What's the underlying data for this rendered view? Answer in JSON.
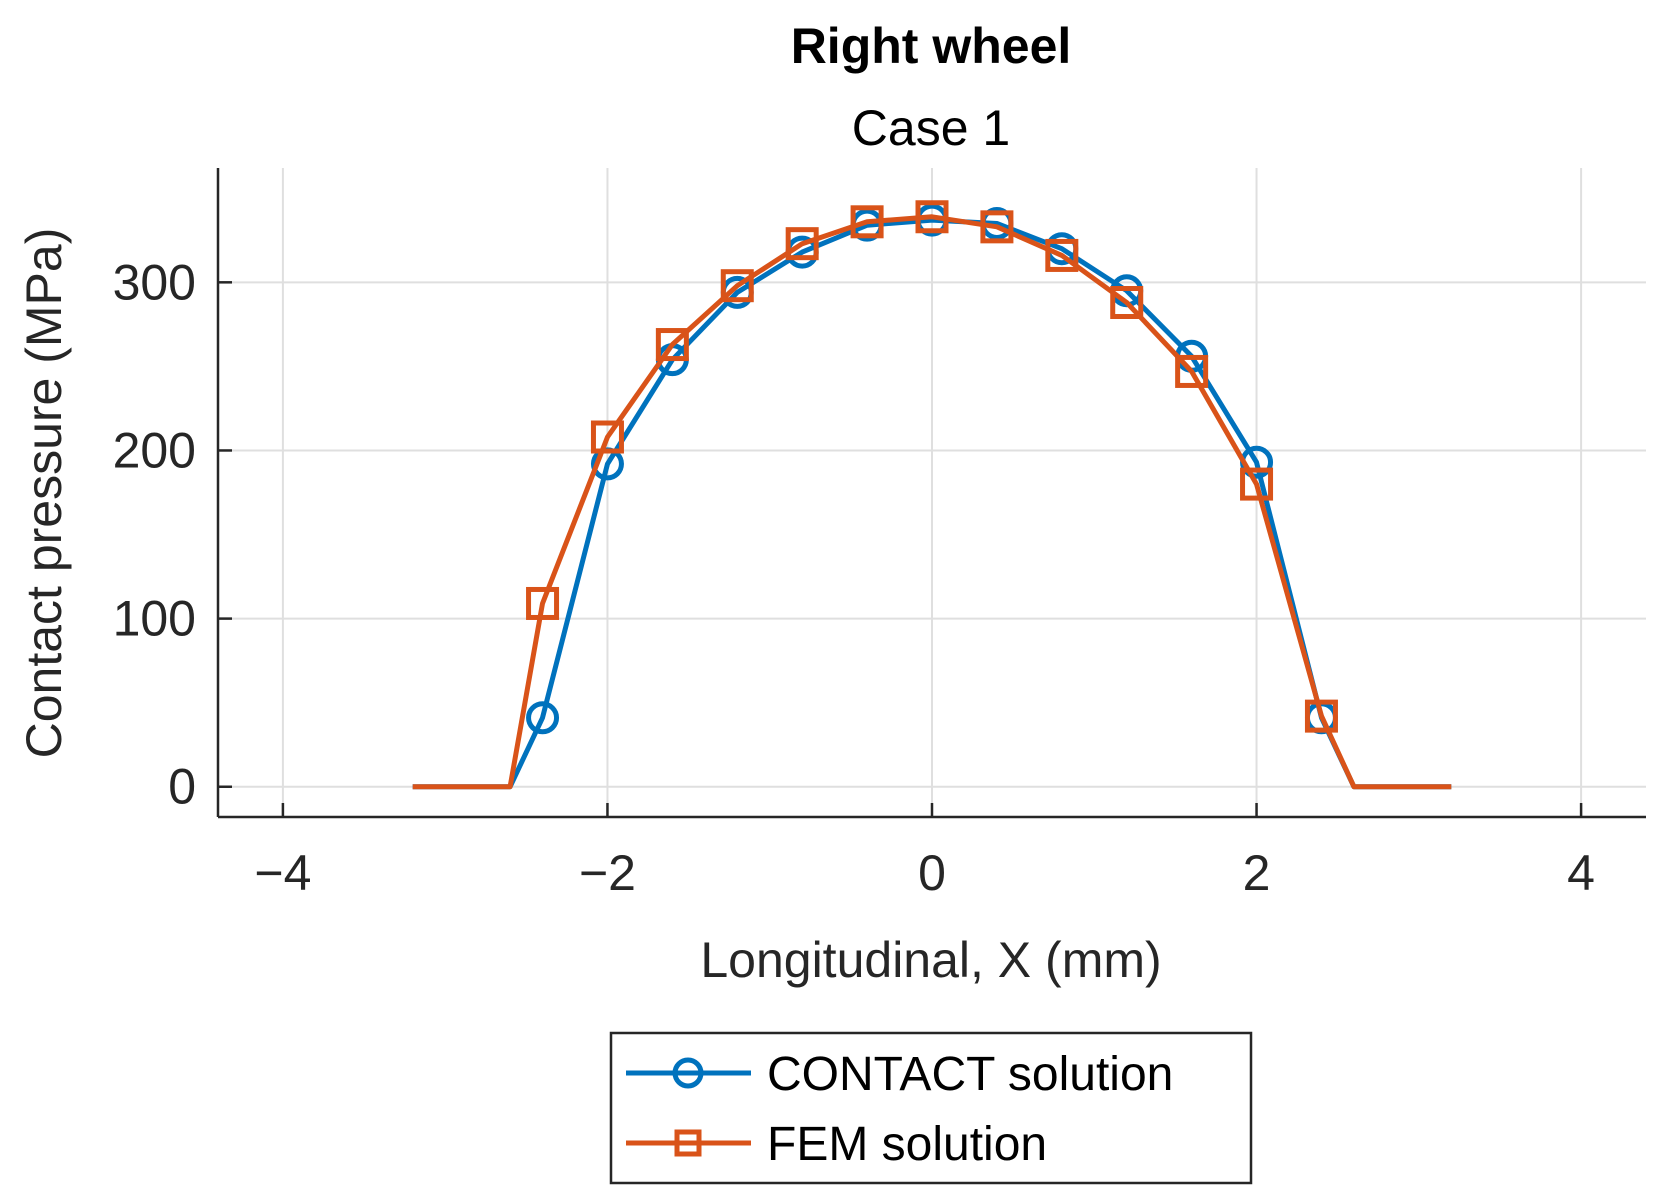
{
  "chart_data": {
    "type": "line",
    "title": "Right wheel",
    "subtitle": "Case 1",
    "xlabel": "Longitudinal, X (mm)",
    "ylabel": "Contact pressure (MPa)",
    "xlim": [
      -4.4,
      4.4
    ],
    "ylim": [
      -18,
      368
    ],
    "xticks": [
      -4,
      -2,
      0,
      2,
      4
    ],
    "xtick_labels": [
      "−4",
      "−2",
      "0",
      "2",
      "4"
    ],
    "yticks": [
      0,
      100,
      200,
      300
    ],
    "ytick_labels": [
      "0",
      "100",
      "200",
      "300"
    ],
    "grid": true,
    "legend_position": "bottom-outside",
    "series": [
      {
        "name": "CONTACT solution",
        "color": "#0072BD",
        "marker": "circle",
        "x": [
          -3.2,
          -2.6,
          -2.4,
          -2.0,
          -1.6,
          -1.2,
          -0.8,
          -0.4,
          0.0,
          0.4,
          0.8,
          1.2,
          1.6,
          2.0,
          2.4,
          2.6,
          3.2
        ],
        "y": [
          0,
          0,
          41,
          192,
          254,
          294,
          318,
          334,
          337,
          335,
          320,
          295,
          256,
          193,
          41,
          0,
          0
        ],
        "marker_indices": [
          2,
          3,
          4,
          5,
          6,
          7,
          8,
          9,
          10,
          11,
          12,
          13,
          14
        ]
      },
      {
        "name": "FEM solution",
        "color": "#D95319",
        "marker": "square",
        "x": [
          -3.2,
          -2.6,
          -2.4,
          -2.0,
          -1.6,
          -1.2,
          -0.8,
          -0.4,
          0.0,
          0.4,
          0.8,
          1.2,
          1.6,
          2.0,
          2.4,
          2.6,
          3.2
        ],
        "y": [
          0,
          0,
          109,
          208,
          263,
          298,
          323,
          336,
          339,
          333,
          316,
          288,
          247,
          180,
          42,
          0,
          0
        ],
        "marker_indices": [
          2,
          3,
          4,
          5,
          6,
          7,
          8,
          9,
          10,
          11,
          12,
          13,
          14
        ]
      }
    ]
  }
}
